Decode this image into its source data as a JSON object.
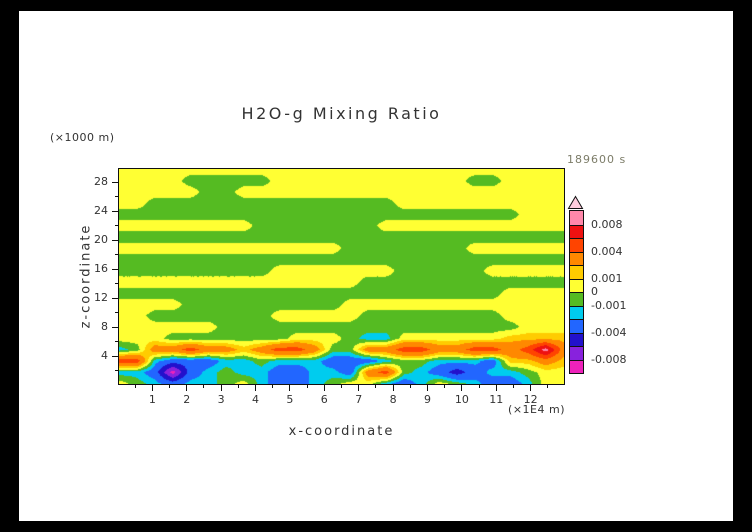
{
  "chart_data": {
    "type": "heatmap",
    "title": "H2O-g Mixing Ratio",
    "xlabel": "x-coordinate",
    "ylabel": "z-coordinate",
    "x_units": "(×1E4 m)",
    "y_units": "(×1000 m)",
    "timestamp": "189600 s",
    "x_range": [
      0,
      13
    ],
    "z_range": [
      0,
      30
    ],
    "x_ticks": [
      1,
      2,
      3,
      4,
      5,
      6,
      7,
      8,
      9,
      10,
      11,
      12
    ],
    "z_ticks": [
      4,
      8,
      12,
      16,
      20,
      24,
      28
    ],
    "levels": [
      -0.008,
      -0.006,
      -0.004,
      -0.002,
      -0.001,
      0,
      0.001,
      0.002,
      0.004,
      0.006,
      0.008
    ],
    "colors": [
      "#ee22bb",
      "#8822dd",
      "#2211cc",
      "#2266ff",
      "#00ccee",
      "#55bb22",
      "#ffff33",
      "#ffcc00",
      "#ff8800",
      "#ff4400",
      "#ee1111",
      "#ff88aa"
    ],
    "over_color": "#ffccdd",
    "colorbar_labels": [
      "0.008",
      "0.004",
      "0.001",
      "0",
      "-0.001",
      "-0.004",
      "-0.008"
    ],
    "colorbar_label_boundaries": [
      1,
      3,
      5,
      6,
      7,
      9,
      11
    ],
    "legend_position": "right",
    "grid": {
      "cols": 26,
      "rows": 20,
      "values": [
        [
          0.0005,
          0.0005,
          0.0005,
          0.0005,
          0.0005,
          0.0005,
          0.0005,
          0.0005,
          0.0005,
          0.0005,
          0.0005,
          0.0005,
          0.0005,
          0.0005,
          0.0005,
          0.0005,
          0.0005,
          0.0005,
          0.0005,
          0.0005,
          0.0005,
          0.0005,
          0.0005,
          0.0005,
          0.0005,
          0.0005
        ],
        [
          0.0005,
          0.0005,
          0.0005,
          0.0005,
          -0.0005,
          -0.0005,
          -0.0005,
          -0.0005,
          -0.0005,
          0.0005,
          0.0005,
          0.0005,
          0.0005,
          0.0005,
          0.0005,
          0.0005,
          0.0005,
          0.0005,
          0.0005,
          0.0005,
          -0.0005,
          -0.0005,
          0.0005,
          0.0005,
          0.0005,
          0.0005
        ],
        [
          0.0005,
          0.0005,
          0.0005,
          0.0005,
          0.0005,
          -0.0005,
          -0.0005,
          0.0005,
          0.0005,
          0.0005,
          0.0005,
          0.0005,
          0.0005,
          0.0005,
          0.0005,
          0.0005,
          0.0005,
          0.0005,
          0.0005,
          0.0005,
          0.0005,
          0.0005,
          0.0005,
          0.0005,
          0.0005,
          0.0005
        ],
        [
          0.0005,
          0.0005,
          -0.0005,
          -0.0005,
          -0.0005,
          -0.0005,
          -0.0005,
          -0.0005,
          -0.0005,
          -0.0005,
          -0.0005,
          -0.0005,
          -0.0005,
          -0.0005,
          -0.0005,
          -0.0005,
          0.0005,
          0.0005,
          0.0005,
          0.0005,
          0.0005,
          0.0005,
          0.0005,
          0.0005,
          0.0005,
          0.0005
        ],
        [
          -0.0005,
          -0.0005,
          -0.0005,
          -0.0005,
          -0.0005,
          -0.0005,
          -0.0005,
          -0.0005,
          -0.0005,
          -0.0005,
          -0.0005,
          -0.0005,
          -0.0005,
          -0.0005,
          -0.0005,
          -0.0005,
          -0.0005,
          -0.0005,
          -0.0005,
          -0.0005,
          -0.0005,
          -0.0005,
          -0.0005,
          0.0005,
          0.0005,
          0.0005
        ],
        [
          0.0005,
          0.0005,
          0.0005,
          0.0005,
          0.0005,
          0.0005,
          0.0005,
          0.0005,
          -0.0005,
          -0.0005,
          -0.0005,
          -0.0005,
          -0.0005,
          -0.0005,
          -0.0005,
          0.0005,
          0.0005,
          0.0005,
          0.0005,
          0.0005,
          0.0005,
          0.0005,
          0.0005,
          0.0005,
          0.0005,
          0.0005
        ],
        [
          -0.0005,
          -0.0005,
          -0.0005,
          -0.0005,
          -0.0005,
          -0.0005,
          -0.0005,
          -0.0005,
          -0.0005,
          -0.0005,
          -0.0005,
          -0.0005,
          -0.0005,
          -0.0005,
          -0.0005,
          -0.0005,
          -0.0005,
          -0.0005,
          -0.0005,
          -0.0005,
          -0.0005,
          -0.0005,
          -0.0005,
          -0.0005,
          -0.0005,
          -0.0005
        ],
        [
          0.0005,
          0.0005,
          0.0005,
          0.0005,
          0.0005,
          0.0005,
          0.0005,
          0.0005,
          0.0005,
          0.0005,
          0.0005,
          0.0005,
          0.0005,
          -0.0005,
          -0.0005,
          -0.0005,
          -0.0005,
          -0.0005,
          -0.0005,
          -0.0005,
          0.0005,
          0.0005,
          0.0005,
          0.0005,
          0.0005,
          0.0005
        ],
        [
          -0.0005,
          -0.0005,
          -0.0005,
          -0.0005,
          -0.0005,
          -0.0005,
          -0.0005,
          -0.0005,
          -0.0005,
          -0.0005,
          -0.0005,
          -0.0005,
          -0.0005,
          -0.0005,
          -0.0005,
          -0.0005,
          -0.0005,
          -0.0005,
          -0.0005,
          -0.0005,
          -0.0005,
          -0.0005,
          -0.0005,
          -0.0005,
          -0.0005,
          -0.0005
        ],
        [
          -0.0005,
          -0.0005,
          -0.0005,
          -0.0005,
          -0.0005,
          -0.0005,
          -0.0005,
          -0.0005,
          -0.0005,
          0.0005,
          0.0005,
          0.0005,
          0.0005,
          0.0005,
          0.0005,
          0.0005,
          -0.0005,
          -0.0005,
          -0.0005,
          -0.0005,
          -0.0005,
          0.0005,
          0.0005,
          0.0005,
          0.0005,
          0.0005
        ],
        [
          0.0005,
          0.0005,
          0.0005,
          0.0005,
          0.0005,
          0.0005,
          0.0005,
          0.0005,
          0.0005,
          0.0005,
          0.0005,
          0.0005,
          0.0005,
          0.0005,
          -0.0005,
          -0.0005,
          -0.0005,
          -0.0005,
          -0.0005,
          -0.0005,
          -0.0005,
          -0.0005,
          -0.0005,
          -0.0005,
          -0.0005,
          -0.0005
        ],
        [
          -0.0005,
          -0.0005,
          -0.0005,
          -0.0005,
          -0.0005,
          -0.0005,
          -0.0005,
          -0.0005,
          -0.0005,
          -0.0005,
          -0.0005,
          -0.0005,
          -0.0005,
          -0.0005,
          -0.0005,
          -0.0005,
          -0.0005,
          -0.0005,
          -0.0005,
          -0.0005,
          -0.0005,
          -0.0005,
          0.0005,
          0.0005,
          0.0005,
          0.0005
        ],
        [
          0.0005,
          0.0005,
          0.0005,
          0.0005,
          -0.0005,
          -0.0005,
          -0.0005,
          -0.0005,
          -0.0005,
          -0.0005,
          -0.0005,
          -0.0005,
          -0.0005,
          0.0005,
          0.0005,
          0.0005,
          0.0005,
          0.0005,
          0.0005,
          0.0005,
          0.0005,
          0.0005,
          0.0005,
          0.0005,
          0.0005,
          0.0005
        ],
        [
          0.0005,
          0.0005,
          -0.0005,
          -0.0005,
          -0.0005,
          -0.0005,
          -0.0005,
          -0.0005,
          -0.0005,
          0.0005,
          0.0005,
          0.0005,
          0.0005,
          0.0005,
          -0.0005,
          -0.0005,
          -0.0005,
          -0.0005,
          -0.0005,
          -0.0005,
          -0.0005,
          -0.0005,
          0.0005,
          0.0005,
          0.0005,
          0.0005
        ],
        [
          0.0005,
          0.0005,
          0.0005,
          0.0005,
          0.0005,
          0.0005,
          -0.0005,
          -0.0005,
          -0.0005,
          -0.0005,
          -0.0005,
          -0.0005,
          -0.0005,
          -0.0005,
          -0.0005,
          -0.0005,
          -0.0005,
          -0.0005,
          -0.0005,
          -0.0005,
          -0.0005,
          -0.0005,
          -0.0005,
          0.0005,
          0.0005,
          0.0005
        ],
        [
          0.0005,
          0.0005,
          0.0005,
          -0.0005,
          -0.0005,
          -0.0005,
          -0.0005,
          -0.0005,
          -0.0005,
          -0.0005,
          0.0005,
          0.0005,
          0.0005,
          -0.0005,
          -0.0015,
          -0.0015,
          0.0005,
          0.0005,
          0.0005,
          0.0005,
          0.0005,
          0.0005,
          0.0015,
          0.0015,
          0.0015,
          0.0015
        ],
        [
          -0.0015,
          -0.0005,
          0.003,
          0.003,
          0.005,
          0.003,
          0.003,
          0.0015,
          0.003,
          0.005,
          0.005,
          0.003,
          -0.0005,
          -0.0005,
          0.003,
          0.003,
          0.005,
          0.005,
          0.003,
          0.003,
          0.005,
          0.005,
          0.003,
          0.005,
          0.009,
          0.003
        ],
        [
          0.005,
          0.005,
          -0.0015,
          -0.003,
          -0.003,
          -0.003,
          -0.0015,
          -0.0015,
          -0.0005,
          -0.0015,
          -0.0015,
          -0.0015,
          -0.003,
          -0.003,
          -0.003,
          -0.0015,
          -0.0005,
          -0.0005,
          -0.0015,
          -0.0015,
          -0.0015,
          -0.003,
          0.0015,
          0.0015,
          0.003,
          0.0015
        ],
        [
          -0.0015,
          -0.0015,
          -0.003,
          -0.009,
          -0.003,
          -0.0015,
          -0.0005,
          -0.0015,
          -0.0015,
          -0.003,
          -0.003,
          -0.0015,
          -0.0015,
          -0.003,
          0.003,
          0.005,
          -0.0005,
          -0.0015,
          -0.003,
          -0.005,
          -0.003,
          -0.0015,
          -0.0015,
          -0.0005,
          0.0005,
          0.0005
        ],
        [
          0.0005,
          -0.0005,
          -0.0015,
          -0.003,
          -0.0015,
          -0.0015,
          -0.0005,
          0.0005,
          -0.0015,
          -0.003,
          -0.003,
          -0.0015,
          -0.0005,
          0.0005,
          0.0005,
          -0.0015,
          -0.003,
          -0.0015,
          0.0005,
          -0.0005,
          -0.0015,
          -0.003,
          -0.003,
          -0.0015,
          0.0005,
          0.0005
        ]
      ]
    }
  }
}
